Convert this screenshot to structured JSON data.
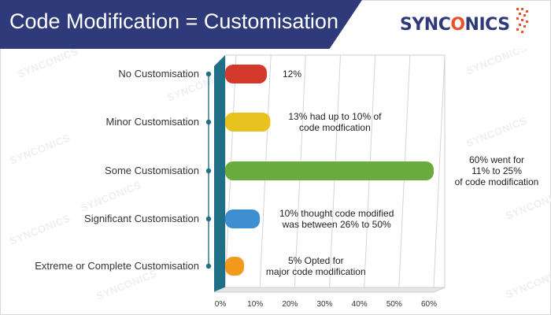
{
  "header": {
    "title": "Code Modification = Customisation",
    "logo_text_left": "SYNC",
    "logo_text_o": "O",
    "logo_text_right": "NICS",
    "watermark": "SYNCONICS"
  },
  "colors": {
    "title_bar": "#2e3a7a",
    "axis_wall": "#1f6f86",
    "logo_accent": "#e8532b"
  },
  "chart_data": {
    "type": "bar",
    "orientation": "horizontal",
    "categories": [
      "No Customisation",
      "Minor Customisation",
      "Some Customisation",
      "Significant Customisation",
      "Extreme or Complete Customisation"
    ],
    "values": [
      12,
      13,
      60,
      10,
      5
    ],
    "bar_colors": [
      "#d33a2c",
      "#e8c21f",
      "#6aab3e",
      "#3d8fd1",
      "#f29a1b"
    ],
    "data_labels": [
      [
        "12%"
      ],
      [
        "13% had up to 10% of",
        "code modfication"
      ],
      [
        "60% went for",
        "11% to 25%",
        "of code modification"
      ],
      [
        "10% thought code modified",
        "was between 26% to 50%"
      ],
      [
        "5% Opted for",
        "major code modification"
      ]
    ],
    "xticks": [
      "0%",
      "10%",
      "20%",
      "30%",
      "40%",
      "50%",
      "60%"
    ],
    "xlim": [
      0,
      60
    ],
    "grid": true
  }
}
